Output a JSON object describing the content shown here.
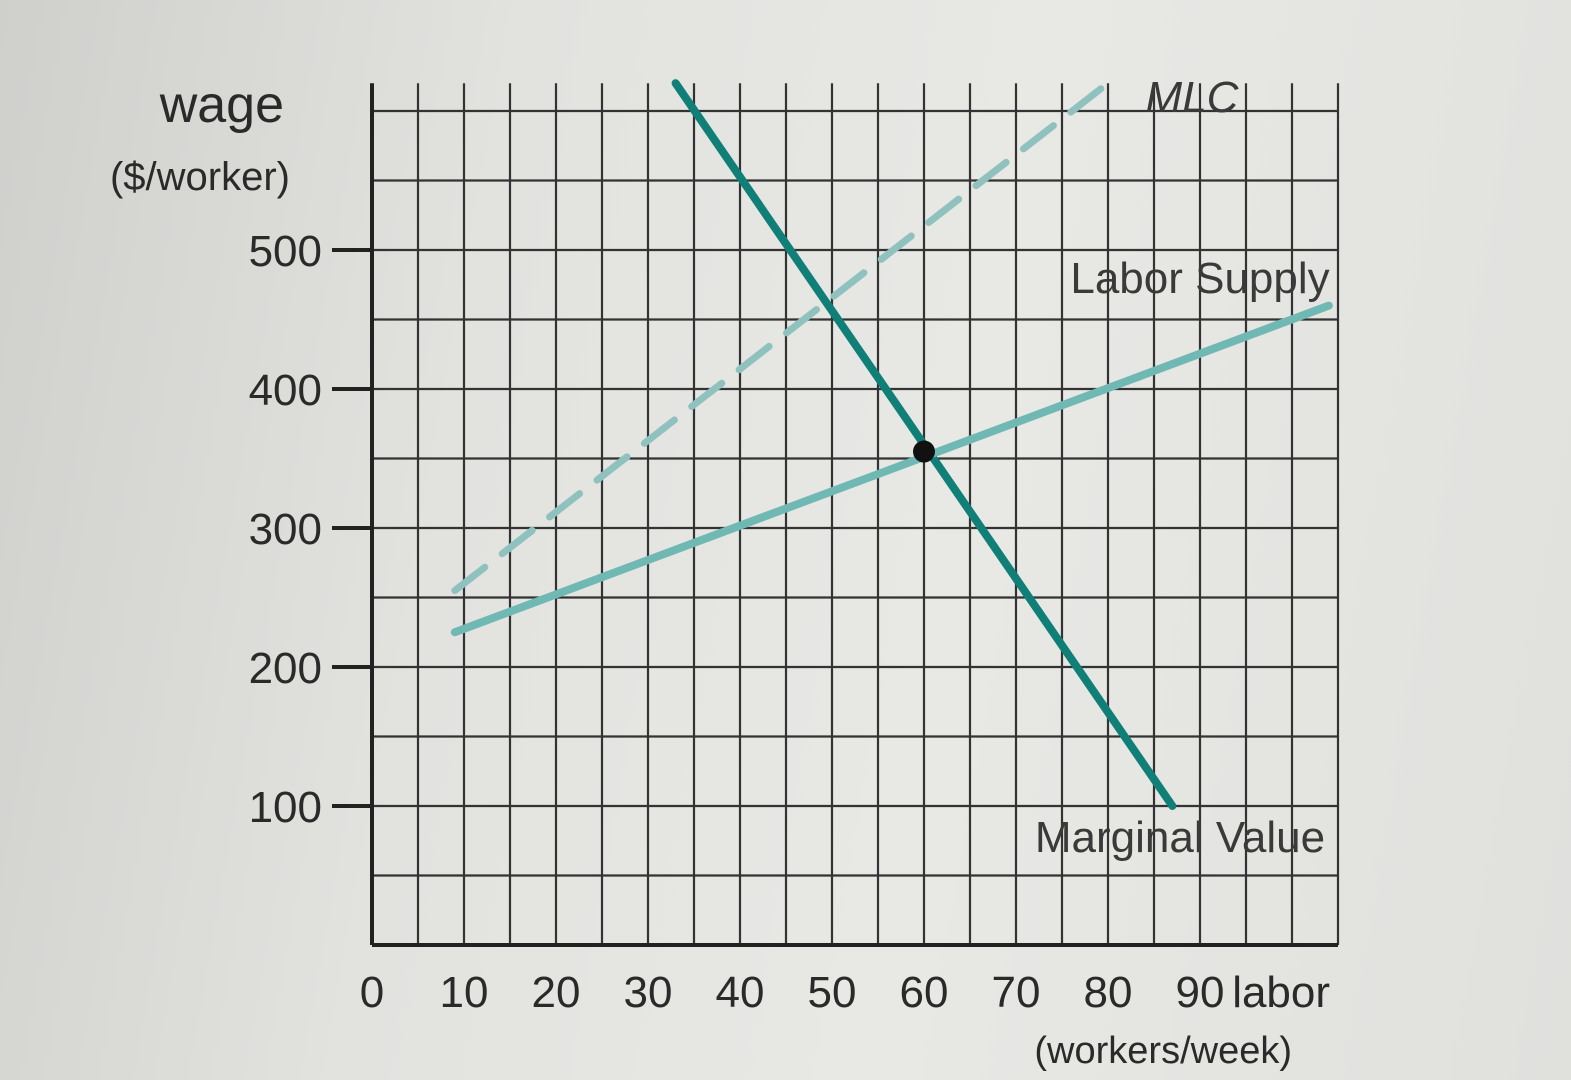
{
  "chart_data": {
    "type": "line",
    "title": "",
    "ylabel": "wage",
    "ylabel_unit": "($/worker)",
    "xlabel": "labor",
    "xlabel_unit": "(workers/week)",
    "xlim": [
      0,
      105
    ],
    "ylim": [
      0,
      620
    ],
    "x_ticks": [
      "0",
      "10",
      "20",
      "30",
      "40",
      "50",
      "60",
      "70",
      "80",
      "90"
    ],
    "y_ticks": [
      "100",
      "200",
      "300",
      "400",
      "500"
    ],
    "grid": true,
    "series": [
      {
        "name": "Marginal Value",
        "style": "solid",
        "color": "#0f7f78",
        "points": [
          [
            33,
            620
          ],
          [
            87,
            100
          ]
        ]
      },
      {
        "name": "Labor Supply",
        "style": "solid",
        "color": "#6fb8b4",
        "points": [
          [
            9,
            225
          ],
          [
            104,
            460
          ]
        ]
      },
      {
        "name": "MLC",
        "style": "dashed",
        "color": "#8fc2be",
        "points": [
          [
            9,
            255
          ],
          [
            80,
            620
          ]
        ]
      }
    ],
    "highlight_point": {
      "x": 60,
      "y": 355
    }
  },
  "colors": {
    "grid": "#333333",
    "marker": "#111111"
  }
}
